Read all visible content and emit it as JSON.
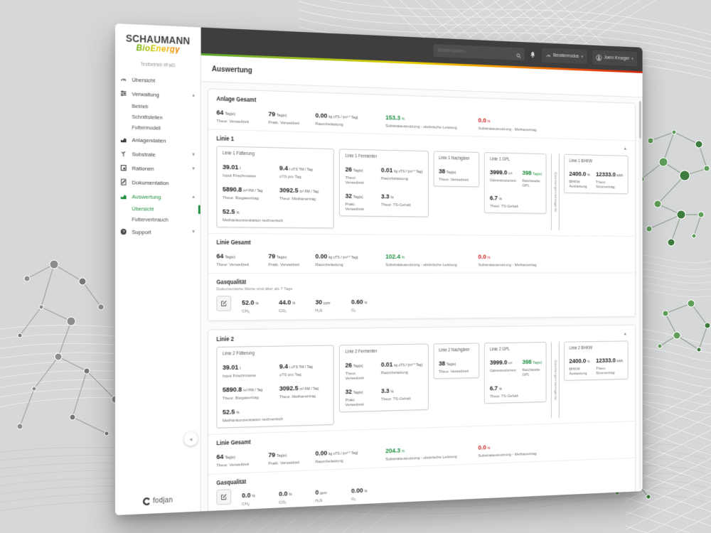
{
  "colors": {
    "accent_green": "#1e8e3e",
    "accent_red": "#d21f1f",
    "bar_dark": "#3e3e3e",
    "gradient": [
      "#56a52f",
      "#e8d200",
      "#f29100",
      "#cf2410"
    ]
  },
  "icons": {
    "panel_collapse": "▲",
    "nav_expanded": "▲",
    "nav_collapsed": "▼",
    "sidebar_collapse": "◂",
    "chip_caret": "▾"
  },
  "brand": {
    "line1": "SCHAUMANN",
    "line2": "BioEnergy",
    "farm": "Testbetrieb #Fall1",
    "footer": "fodjan"
  },
  "sidebar": {
    "items": [
      {
        "icon": "gauge-icon",
        "label": "Übersicht"
      },
      {
        "icon": "settings-icon",
        "label": "Verwaltung",
        "caret": "▲"
      },
      {
        "label": "Betrieb"
      },
      {
        "label": "Schnittstellen"
      },
      {
        "label": "Futtermodell"
      },
      {
        "icon": "bar-chart-icon",
        "label": "Anlagendaten"
      },
      {
        "icon": "plant-icon",
        "label": "Substrate",
        "caret": "▼"
      },
      {
        "icon": "rations-icon",
        "label": "Rationen",
        "caret": "▼"
      },
      {
        "icon": "document-icon",
        "label": "Dokumentation"
      },
      {
        "icon": "chart-green-icon",
        "label": "Auswertung",
        "caret": "▲"
      },
      {
        "label": "Übersicht"
      },
      {
        "label": "Futterverbrauch"
      },
      {
        "icon": "question-icon",
        "label": "Support",
        "caret": "▼"
      }
    ]
  },
  "topbar": {
    "search_placeholder": "Betrieb suchen...",
    "beratermodus": "Beratermodus",
    "user": "Joern Kroeger"
  },
  "page": {
    "title": "Auswertung"
  },
  "panels": [
    {
      "summary": {
        "title": "Anlage Gesamt",
        "stats": [
          {
            "value": "64",
            "unit": "Tag(e)",
            "label": "Theor. Verweilzeit"
          },
          {
            "value": "79",
            "unit": "Tag(e)",
            "label": "Prakt. Verweilzeit"
          },
          {
            "value": "0.00",
            "unit": "kg oTS / (m³ * Tag)",
            "label": "Raumbelastung"
          },
          {
            "value": "153.3",
            "unit": "%",
            "label": "Substratausnutzung - elektrische Leistung",
            "color": "green"
          },
          {
            "value": "0.0",
            "unit": "%",
            "label": "Substratausnutzung - Methanertrag",
            "color": "red"
          }
        ]
      },
      "line": {
        "title": "Linie 1",
        "caret": "▲",
        "divider_label": "Gasmengenmessgerät",
        "cards": [
          {
            "title": "Linie 1 Fütterung",
            "kind": "feed",
            "metrics": [
              {
                "value": "39.01",
                "unit": "t",
                "label": "Input Frischmasse"
              },
              {
                "value": "9.4",
                "unit": "t oTS TM / Tag",
                "label": "oTS pro Tag"
              },
              {
                "value": "5890.8",
                "unit": "m³ FM / Tag",
                "label": "Theor. Biogasertrag"
              },
              {
                "value": "3092.5",
                "unit": "m³ FM / Tag",
                "label": "Theor. Methanertrag"
              },
              {
                "value": "52.5",
                "unit": "%",
                "label": "Methankonzentration rechnerisch",
                "span": true
              }
            ]
          },
          {
            "title": "Linie 1 Fermenter",
            "kind": "ferm",
            "metrics": [
              {
                "value": "26",
                "unit": "Tag(e)",
                "label": "Theor. Verweilzeit"
              },
              {
                "value": "0.01",
                "unit": "kg oTS / (m³ * Tag)",
                "label": "Raumbelastung"
              },
              {
                "value": "32",
                "unit": "Tag(e)",
                "label": "Prakt. Verweilzeit"
              },
              {
                "value": "3.3",
                "unit": "%",
                "label": "Theor. TS-Gehalt"
              }
            ]
          },
          {
            "title": "Linie 1 Nachgärer",
            "kind": "post",
            "metrics": [
              {
                "value": "38",
                "unit": "Tag(e)",
                "label": "Theor. Verweilzeit"
              }
            ]
          },
          {
            "title": "Linie 1 GPL",
            "kind": "gpl",
            "metrics": [
              {
                "value": "3999.0",
                "unit": "m³",
                "label": "Gärrestvolumen"
              },
              {
                "value": "398",
                "unit": "Tag(e)",
                "label": "Reichweite GPL",
                "color": "green"
              },
              {
                "value": "6.7",
                "unit": "%",
                "label": "Theor. TS-Gehalt",
                "span": true
              }
            ]
          },
          {
            "title": "Linie 1 BHKW",
            "kind": "bhkw",
            "metrics": [
              {
                "value": "2400.0",
                "unit": "%",
                "label": "BHKW Auslastung"
              },
              {
                "value": "12333.0",
                "unit": "kWh",
                "label": "Theor. Stromertrag"
              }
            ]
          }
        ]
      },
      "line_total": {
        "title": "Linie Gesamt",
        "stats": [
          {
            "value": "64",
            "unit": "Tag(e)",
            "label": "Theor. Verweilzeit"
          },
          {
            "value": "79",
            "unit": "Tag(e)",
            "label": "Prakt. Verweilzeit"
          },
          {
            "value": "0.00",
            "unit": "kg oTS / (m³ * Tag)",
            "label": "Raumbelastung"
          },
          {
            "value": "102.4",
            "unit": "%",
            "label": "Substratausnutzung - elektrische Leistung",
            "color": "green"
          },
          {
            "value": "0.0",
            "unit": "%",
            "label": "Substratausnutzung - Methanertrag",
            "color": "red"
          }
        ]
      },
      "gas": {
        "title": "Gasqualität",
        "warning": "Dokumentierte Werte sind älter als 7 Tage",
        "stats": [
          {
            "value": "52.0",
            "unit": "%",
            "label": "CH₄"
          },
          {
            "value": "44.0",
            "unit": "%",
            "label": "CO₂"
          },
          {
            "value": "30",
            "unit": "ppm",
            "label": "H₂S"
          },
          {
            "value": "0.60",
            "unit": "%",
            "label": "O₂"
          }
        ]
      }
    },
    {
      "line": {
        "title": "Linie 2",
        "caret": "▲",
        "divider_label": "Gasmengenmessgerät",
        "cards": [
          {
            "title": "Linie 2 Fütterung",
            "kind": "feed",
            "metrics": [
              {
                "value": "39.01",
                "unit": "t",
                "label": "Input Frischmasse"
              },
              {
                "value": "9.4",
                "unit": "t oTS TM / Tag",
                "label": "oTS pro Tag"
              },
              {
                "value": "5890.8",
                "unit": "m³ FM / Tag",
                "label": "Theor. Biogasertrag"
              },
              {
                "value": "3092.5",
                "unit": "m³ FM / Tag",
                "label": "Theor. Methanertrag"
              },
              {
                "value": "52.5",
                "unit": "%",
                "label": "Methankonzentration rechnerisch",
                "span": true
              }
            ]
          },
          {
            "title": "Linie 2 Fermenter",
            "kind": "ferm",
            "metrics": [
              {
                "value": "26",
                "unit": "Tag(e)",
                "label": "Theor. Verweilzeit"
              },
              {
                "value": "0.01",
                "unit": "kg oTS / (m³ * Tag)",
                "label": "Raumbelastung"
              },
              {
                "value": "32",
                "unit": "Tag(e)",
                "label": "Prakt. Verweilzeit"
              },
              {
                "value": "3.3",
                "unit": "%",
                "label": "Theor. TS-Gehalt"
              }
            ]
          },
          {
            "title": "Linie 2 Nachgärer",
            "kind": "post",
            "metrics": [
              {
                "value": "38",
                "unit": "Tag(e)",
                "label": "Theor. Verweilzeit"
              }
            ]
          },
          {
            "title": "Linie 2 GPL",
            "kind": "gpl",
            "metrics": [
              {
                "value": "3999.0",
                "unit": "m³",
                "label": "Gärrestvolumen"
              },
              {
                "value": "398",
                "unit": "Tag(e)",
                "label": "Reichweite GPL",
                "color": "green"
              },
              {
                "value": "6.7",
                "unit": "%",
                "label": "Theor. TS-Gehalt",
                "span": true
              }
            ]
          },
          {
            "title": "Linie 2 BHKW",
            "kind": "bhkw",
            "metrics": [
              {
                "value": "2400.0",
                "unit": "%",
                "label": "BHKW Auslastung"
              },
              {
                "value": "12333.0",
                "unit": "kWh",
                "label": "Theor. Stromertrag"
              }
            ]
          }
        ]
      },
      "line_total": {
        "title": "Linie Gesamt",
        "stats": [
          {
            "value": "64",
            "unit": "Tag(e)",
            "label": "Theor. Verweilzeit"
          },
          {
            "value": "79",
            "unit": "Tag(e)",
            "label": "Prakt. Verweilzeit"
          },
          {
            "value": "0.00",
            "unit": "kg oTS / (m³ * Tag)",
            "label": "Raumbelastung"
          },
          {
            "value": "204.3",
            "unit": "%",
            "label": "Substratausnutzung - elektrische Leistung",
            "color": "green"
          },
          {
            "value": "0.0",
            "unit": "%",
            "label": "Substratausnutzung - Methanertrag",
            "color": "red"
          }
        ]
      },
      "gas": {
        "title": "Gasqualität",
        "warning": null,
        "stats": [
          {
            "value": "0.0",
            "unit": "%",
            "label": "CH₄"
          },
          {
            "value": "0.0",
            "unit": "%",
            "label": "CO₂"
          },
          {
            "value": "0",
            "unit": "ppm",
            "label": "H₂S"
          },
          {
            "value": "0.00",
            "unit": "%",
            "label": "O₂"
          }
        ]
      }
    }
  ]
}
